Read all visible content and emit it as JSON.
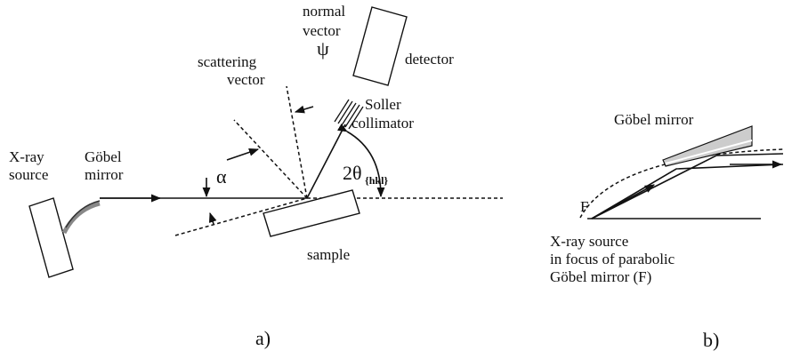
{
  "panel_a": {
    "xray_source": [
      "X-ray",
      "source"
    ],
    "mirror": [
      "Göbel",
      "mirror"
    ],
    "alpha": "α",
    "scattering_vector": [
      "scattering",
      "vector"
    ],
    "normal_vector": [
      "normal",
      "vector"
    ],
    "psi": "ψ",
    "detector": "detector",
    "soller": [
      "Soller",
      "collimator"
    ],
    "two_theta": "2θ",
    "two_theta_sub": "{hkl}",
    "sample": "sample",
    "label": "a)"
  },
  "panel_b": {
    "mirror": "Göbel mirror",
    "focus": "F",
    "caption": [
      "X-ray source",
      "in focus of parabolic",
      "Göbel mirror (F)"
    ],
    "label": "b)"
  }
}
